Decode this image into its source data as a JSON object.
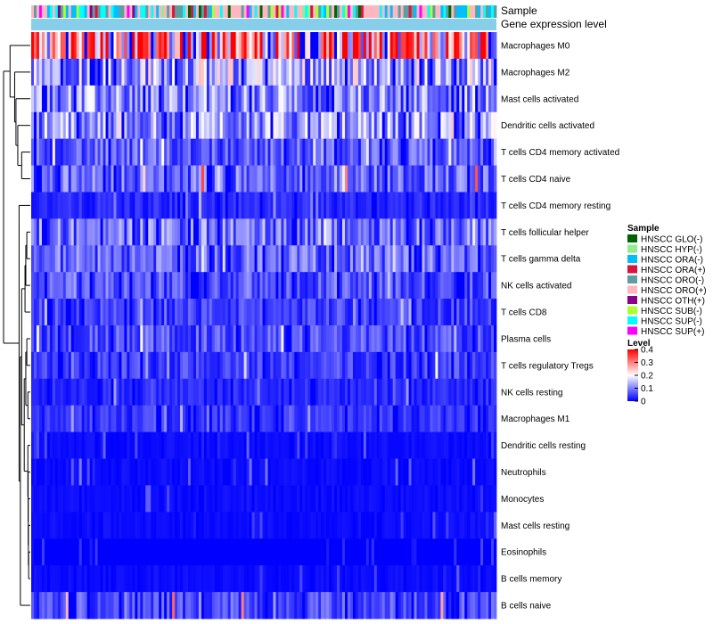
{
  "chart_data": {
    "type": "heatmap",
    "columns": 175,
    "annotation_rows": [
      "Sample",
      "Gene expression level"
    ],
    "rows": [
      "Macrophages M0",
      "Macrophages M2",
      "Mast cells activated",
      "Dendritic cells activated",
      "T cells CD4 memory activated",
      "T cells CD4 naive",
      "T cells CD4 memory resting",
      "T cells follicular helper",
      "T cells gamma delta",
      "NK cells activated",
      "T cells CD8",
      "Plasma cells",
      "T cells regulatory  Tregs",
      "NK cells resting",
      "Macrophages M1",
      "Dendritic cells resting",
      "Neutrophils",
      "Monocytes",
      "Mast cells resting",
      "Eosinophils",
      "B cells memory",
      "B cells naive"
    ],
    "row_mean_levels": [
      0.28,
      0.14,
      0.11,
      0.12,
      0.07,
      0.08,
      0.03,
      0.09,
      0.08,
      0.06,
      0.05,
      0.06,
      0.05,
      0.03,
      0.04,
      0.01,
      0.01,
      0.01,
      0.01,
      0.0,
      0.01,
      0.06
    ],
    "row_max_levels": [
      0.4,
      0.28,
      0.2,
      0.25,
      0.22,
      0.4,
      0.16,
      0.2,
      0.2,
      0.16,
      0.16,
      0.2,
      0.2,
      0.14,
      0.14,
      0.08,
      0.1,
      0.08,
      0.08,
      0.06,
      0.08,
      0.4
    ],
    "level_scale": {
      "title": "Level",
      "range": [
        0,
        0.4
      ],
      "ticks": [
        "0.4",
        "0.3",
        "0.2",
        "0.1",
        "0"
      ],
      "tick_values": [
        0.4,
        0.3,
        0.2,
        0.1,
        0
      ],
      "colors": [
        "#0000ff",
        "#ffffff",
        "#ff0000"
      ]
    },
    "sample_legend": {
      "title": "Sample",
      "entries": [
        {
          "label": "HNSCC GLO(-)",
          "color": "#006400"
        },
        {
          "label": "HNSCC HYP(-)",
          "color": "#90ee90"
        },
        {
          "label": "HNSCC ORA(-)",
          "color": "#00bfff"
        },
        {
          "label": "HNSCC ORA(+)",
          "color": "#dc143c"
        },
        {
          "label": "HNSCC ORO(-)",
          "color": "#5f9ea0"
        },
        {
          "label": "HNSCC ORO(+)",
          "color": "#ffb6c1"
        },
        {
          "label": "HNSCC OTH(+)",
          "color": "#8b008b"
        },
        {
          "label": "HNSCC SUB(-)",
          "color": "#adff2f"
        },
        {
          "label": "HNSCC SUP(-)",
          "color": "#00ffff"
        },
        {
          "label": "HNSCC SUP(+)",
          "color": "#ff00ff"
        }
      ]
    },
    "gene_expression_color": "#87ceeb"
  }
}
